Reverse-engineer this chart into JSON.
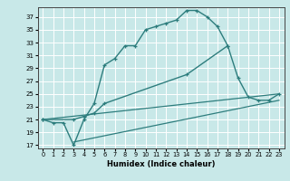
{
  "xlabel": "Humidex (Indice chaleur)",
  "bg_color": "#c8e8e8",
  "grid_color": "#ffffff",
  "line_color": "#2d7d7d",
  "xlim": [
    -0.5,
    23.5
  ],
  "ylim": [
    16.5,
    38.5
  ],
  "yticks": [
    17,
    19,
    21,
    23,
    25,
    27,
    29,
    31,
    33,
    35,
    37
  ],
  "xticks": [
    0,
    1,
    2,
    3,
    4,
    5,
    6,
    7,
    8,
    9,
    10,
    11,
    12,
    13,
    14,
    15,
    16,
    17,
    18,
    19,
    20,
    21,
    22,
    23
  ],
  "curve_upper": {
    "x": [
      0,
      1,
      2,
      3,
      4,
      5,
      6,
      7,
      8,
      9,
      10,
      11,
      12,
      13,
      14,
      15,
      16,
      17,
      18
    ],
    "y": [
      21,
      20.5,
      20.5,
      17,
      21,
      23.5,
      29.5,
      30.5,
      32.5,
      32.5,
      35,
      35.5,
      36,
      36.5,
      38,
      38,
      37,
      35.5,
      32.5
    ]
  },
  "curve_mid": {
    "x": [
      0,
      3,
      4,
      5,
      6,
      14,
      18,
      19,
      20,
      21,
      22,
      23
    ],
    "y": [
      21,
      21,
      21.5,
      22,
      23.5,
      28,
      32.5,
      27.5,
      24.5,
      24,
      24,
      25
    ]
  },
  "curve_lower1": {
    "x": [
      0,
      23
    ],
    "y": [
      21,
      25
    ]
  },
  "curve_lower2": {
    "x": [
      3,
      23
    ],
    "y": [
      17.5,
      24
    ]
  }
}
